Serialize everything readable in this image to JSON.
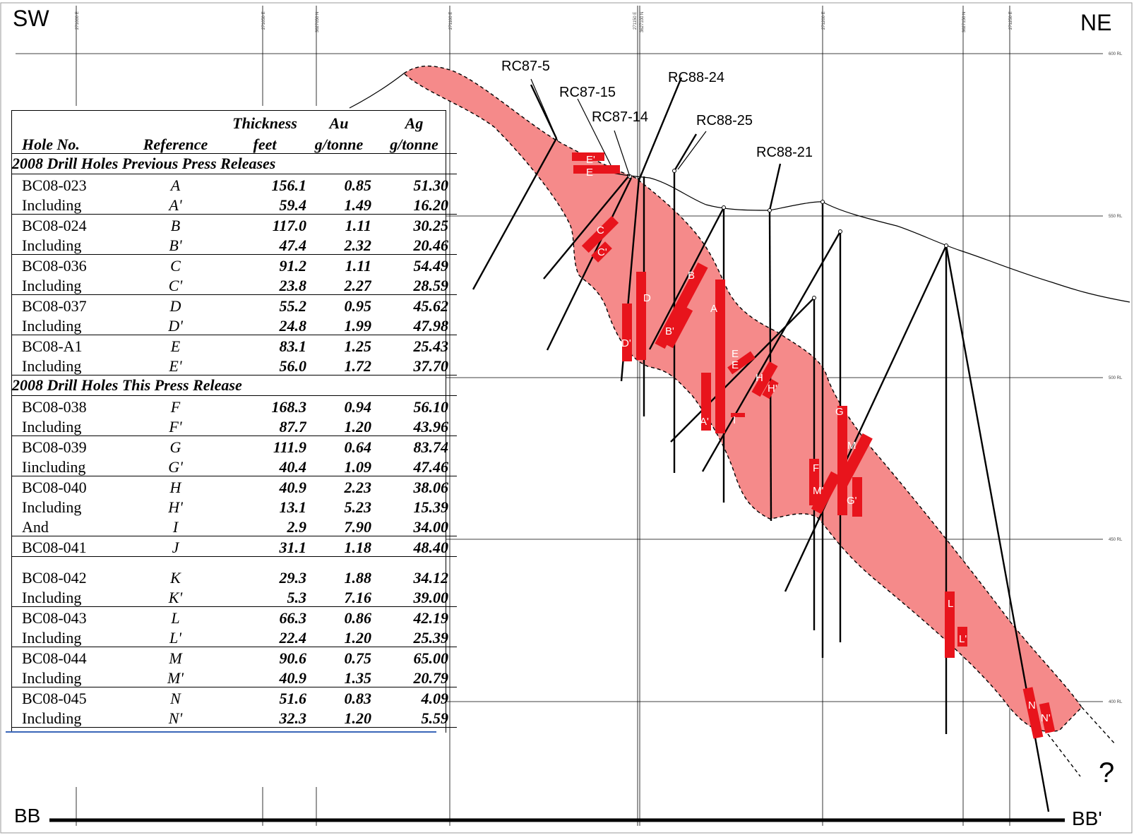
{
  "corners": {
    "left_top": "SW",
    "right_top": "NE",
    "left_bottom": "BB",
    "right_bottom": "BB'"
  },
  "holes": [
    {
      "id": "RC87-5"
    },
    {
      "id": "RC87-15"
    },
    {
      "id": "RC87-14"
    },
    {
      "id": "RC88-24"
    },
    {
      "id": "RC88-25"
    },
    {
      "id": "RC88-21"
    }
  ],
  "intercept_labels": [
    "E'",
    "E",
    "C",
    "C'",
    "D",
    "D'",
    "B",
    "B'",
    "A",
    "A'",
    "I",
    "E",
    "E",
    "H",
    "H'",
    "G",
    "M",
    "F",
    "M'",
    "G'",
    "L",
    "L'",
    "N",
    "N'"
  ],
  "grid_easting_labels": [
    "271000 E",
    "271050 E",
    "3627050 N",
    "271100 E",
    "271150 E",
    "3627100 N",
    "271200 E",
    "3627150 N",
    "271250 E"
  ],
  "rl_labels": [
    "600 RL",
    "550 RL",
    "500 RL",
    "450 RL",
    "400 RL"
  ],
  "question_mark": "?",
  "table": {
    "headers": {
      "hole": "Hole No.",
      "reference": "Reference",
      "thickness_1": "Thickness",
      "thickness_2": "feet",
      "au_1": "Au",
      "au_2": "g/tonne",
      "ag_1": "Ag",
      "ag_2": "g/tonne"
    },
    "section_previous": "2008 Drill Holes Previous Press Releases",
    "section_current": "2008 Drill Holes This Press Release",
    "rows_previous": [
      {
        "hole": "BC08-023",
        "ref": "A",
        "thickness": "156.1",
        "au": "0.85",
        "ag": "51.30"
      },
      {
        "hole": " Including",
        "ref": "A'",
        "thickness": "59.4",
        "au": "1.49",
        "ag": "16.20"
      },
      {
        "hole": "BC08-024",
        "ref": "B",
        "thickness": "117.0",
        "au": "1.11",
        "ag": "30.25"
      },
      {
        "hole": "Including",
        "ref": "B'",
        "thickness": "47.4",
        "au": "2.32",
        "ag": "20.46"
      },
      {
        "hole": "BC08-036",
        "ref": "C",
        "thickness": "91.2",
        "au": "1.11",
        "ag": "54.49"
      },
      {
        "hole": "Including",
        "ref": "C'",
        "thickness": "23.8",
        "au": "2.27",
        "ag": "28.59"
      },
      {
        "hole": "BC08-037",
        "ref": "D",
        "thickness": "55.2",
        "au": "0.95",
        "ag": "45.62"
      },
      {
        "hole": "Including",
        "ref": "D'",
        "thickness": "24.8",
        "au": "1.99",
        "ag": "47.98"
      },
      {
        "hole": "BC08-A1",
        "ref": "E",
        "thickness": "83.1",
        "au": "1.25",
        "ag": "25.43"
      },
      {
        "hole": "Including",
        "ref": "E'",
        "thickness": "56.0",
        "au": "1.72",
        "ag": "37.70"
      }
    ],
    "rows_current": [
      {
        "hole": "BC08-038",
        "ref": "F",
        "thickness": "168.3",
        "au": "0.94",
        "ag": "56.10"
      },
      {
        "hole": "Including",
        "ref": "F'",
        "thickness": "87.7",
        "au": "1.20",
        "ag": "43.96"
      },
      {
        "hole": "BC08-039",
        "ref": "G",
        "thickness": "111.9",
        "au": "0.64",
        "ag": "83.74"
      },
      {
        "hole": "Iincluding",
        "ref": "G'",
        "thickness": "40.4",
        "au": "1.09",
        "ag": "47.46"
      },
      {
        "hole": "BC08-040",
        "ref": "H",
        "thickness": "40.9",
        "au": "2.23",
        "ag": "38.06"
      },
      {
        "hole": "Including",
        "ref": "H'",
        "thickness": "13.1",
        "au": "5.23",
        "ag": "15.39"
      },
      {
        "hole": "And",
        "ref": "I",
        "thickness": "2.9",
        "au": "7.90",
        "ag": "34.00"
      },
      {
        "hole": "BC08-041",
        "ref": "J",
        "thickness": "31.1",
        "au": "1.18",
        "ag": "48.40"
      },
      {
        "hole": "BC08-042",
        "ref": "K",
        "thickness": "29.3",
        "au": "1.88",
        "ag": "34.12"
      },
      {
        "hole": "Including",
        "ref": "K'",
        "thickness": "5.3",
        "au": "7.16",
        "ag": "39.00"
      },
      {
        "hole": "BC08-043",
        "ref": "L",
        "thickness": "66.3",
        "au": "0.86",
        "ag": "42.19"
      },
      {
        "hole": "Including",
        "ref": "L'",
        "thickness": "22.4",
        "au": "1.20",
        "ag": "25.39"
      },
      {
        "hole": "BC08-044",
        "ref": "M",
        "thickness": "90.6",
        "au": "0.75",
        "ag": "65.00"
      },
      {
        "hole": "Including",
        "ref": "M'",
        "thickness": "40.9",
        "au": "1.35",
        "ag": "20.79"
      },
      {
        "hole": "BC08-045",
        "ref": "N",
        "thickness": "51.6",
        "au": "0.83",
        "ag": "4.09"
      },
      {
        "hole": "Including",
        "ref": "N'",
        "thickness": "32.3",
        "au": "1.20",
        "ag": "5.59"
      }
    ]
  }
}
